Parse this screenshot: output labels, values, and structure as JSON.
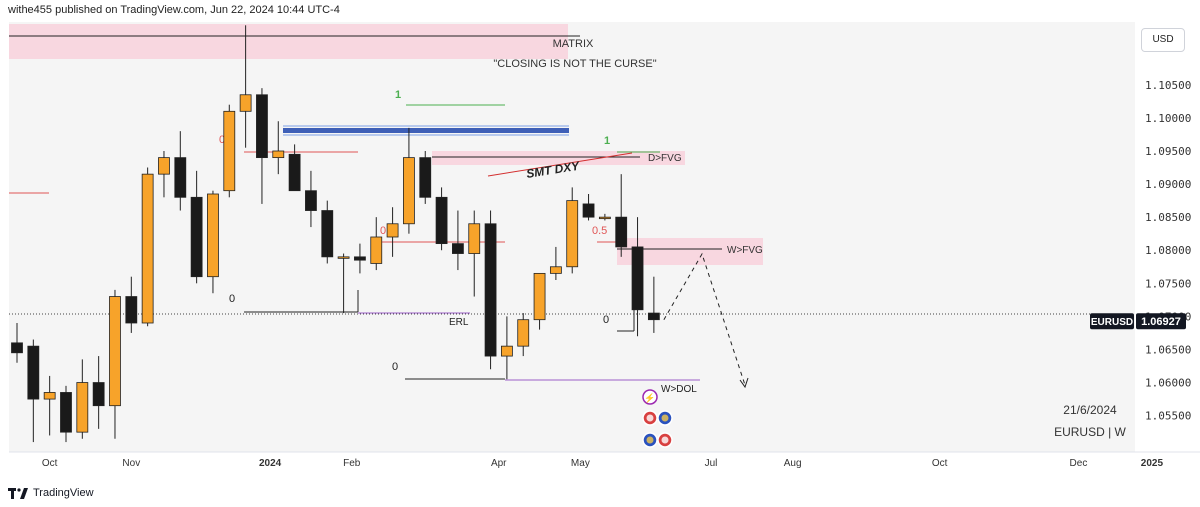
{
  "header": {
    "text": "withe455 published on TradingView.com, Jun 22, 2024 10:44 UTC-4"
  },
  "currency_badge": "USD",
  "footer": {
    "brand": "TradingView"
  },
  "chart_data": {
    "type": "candlestick",
    "symbol_label": "EURUSD",
    "interval_label": "EURUSD | W",
    "date_label": "21/6/2024",
    "title_lines": [
      "MATRIX",
      "\"CLOSING IS NOT THE CURSE\""
    ],
    "last_price": "1.06927",
    "ylim": [
      1.0495,
      1.1145
    ],
    "y_ticks": [
      {
        "v": 1.105,
        "label": "1.10500"
      },
      {
        "v": 1.1,
        "label": "1.10000"
      },
      {
        "v": 1.095,
        "label": "1.09500"
      },
      {
        "v": 1.09,
        "label": "1.09000"
      },
      {
        "v": 1.085,
        "label": "1.08500"
      },
      {
        "v": 1.08,
        "label": "1.08000"
      },
      {
        "v": 1.075,
        "label": "1.07500"
      },
      {
        "v": 1.07,
        "label": "1.07000"
      },
      {
        "v": 1.065,
        "label": "1.06500"
      },
      {
        "v": 1.06,
        "label": "1.06000"
      },
      {
        "v": 1.055,
        "label": "1.05500"
      }
    ],
    "x_ticks": [
      {
        "i": 2,
        "label": "Oct",
        "bold": false
      },
      {
        "i": 7,
        "label": "Nov",
        "bold": false
      },
      {
        "i": 15.5,
        "label": "2024",
        "bold": true
      },
      {
        "i": 20.5,
        "label": "Feb",
        "bold": false
      },
      {
        "i": 29.5,
        "label": "Apr",
        "bold": false
      },
      {
        "i": 34.5,
        "label": "May",
        "bold": false
      },
      {
        "i": 42.5,
        "label": "Jul",
        "bold": false
      },
      {
        "i": 47.5,
        "label": "Aug",
        "bold": false
      },
      {
        "i": 56.5,
        "label": "Oct",
        "bold": false
      },
      {
        "i": 65,
        "label": "Dec",
        "bold": false
      },
      {
        "i": 69.5,
        "label": "2025",
        "bold": true
      }
    ],
    "candles": [
      {
        "o": 1.066,
        "h": 1.069,
        "l": 1.063,
        "c": 1.0645
      },
      {
        "o": 1.0655,
        "h": 1.0665,
        "l": 1.051,
        "c": 1.0575
      },
      {
        "o": 1.0575,
        "h": 1.061,
        "l": 1.052,
        "c": 1.0585
      },
      {
        "o": 1.0585,
        "h": 1.0595,
        "l": 1.051,
        "c": 1.0525
      },
      {
        "o": 1.0525,
        "h": 1.0635,
        "l": 1.0515,
        "c": 1.06
      },
      {
        "o": 1.06,
        "h": 1.064,
        "l": 1.053,
        "c": 1.0565
      },
      {
        "o": 1.0565,
        "h": 1.074,
        "l": 1.0515,
        "c": 1.073
      },
      {
        "o": 1.073,
        "h": 1.076,
        "l": 1.0675,
        "c": 1.069
      },
      {
        "o": 1.069,
        "h": 1.0925,
        "l": 1.0685,
        "c": 1.0915
      },
      {
        "o": 1.0915,
        "h": 1.095,
        "l": 1.088,
        "c": 1.094
      },
      {
        "o": 1.094,
        "h": 1.098,
        "l": 1.086,
        "c": 1.088
      },
      {
        "o": 1.088,
        "h": 1.092,
        "l": 1.075,
        "c": 1.076
      },
      {
        "o": 1.076,
        "h": 1.089,
        "l": 1.0735,
        "c": 1.0885
      },
      {
        "o": 1.089,
        "h": 1.102,
        "l": 1.088,
        "c": 1.101
      },
      {
        "o": 1.101,
        "h": 1.114,
        "l": 1.0955,
        "c": 1.1035
      },
      {
        "o": 1.1035,
        "h": 1.1045,
        "l": 1.087,
        "c": 1.094
      },
      {
        "o": 1.094,
        "h": 1.0995,
        "l": 1.0915,
        "c": 1.095
      },
      {
        "o": 1.0945,
        "h": 1.096,
        "l": 1.089,
        "c": 1.089
      },
      {
        "o": 1.089,
        "h": 1.092,
        "l": 1.0835,
        "c": 1.086
      },
      {
        "o": 1.086,
        "h": 1.0875,
        "l": 1.078,
        "c": 1.079
      },
      {
        "o": 1.079,
        "h": 1.0795,
        "l": 1.0705,
        "c": 1.079
      },
      {
        "o": 1.079,
        "h": 1.081,
        "l": 1.0765,
        "c": 1.0785
      },
      {
        "o": 1.078,
        "h": 1.085,
        "l": 1.077,
        "c": 1.082
      },
      {
        "o": 1.082,
        "h": 1.0865,
        "l": 1.079,
        "c": 1.084
      },
      {
        "o": 1.084,
        "h": 1.0985,
        "l": 1.0825,
        "c": 1.094
      },
      {
        "o": 1.094,
        "h": 1.095,
        "l": 1.087,
        "c": 1.088
      },
      {
        "o": 1.088,
        "h": 1.0895,
        "l": 1.08,
        "c": 1.081
      },
      {
        "o": 1.081,
        "h": 1.086,
        "l": 1.077,
        "c": 1.0795
      },
      {
        "o": 1.0795,
        "h": 1.086,
        "l": 1.073,
        "c": 1.084
      },
      {
        "o": 1.084,
        "h": 1.086,
        "l": 1.062,
        "c": 1.064
      },
      {
        "o": 1.064,
        "h": 1.07,
        "l": 1.0605,
        "c": 1.0655
      },
      {
        "o": 1.0655,
        "h": 1.0705,
        "l": 1.064,
        "c": 1.0695
      },
      {
        "o": 1.0695,
        "h": 1.076,
        "l": 1.068,
        "c": 1.0765
      },
      {
        "o": 1.0765,
        "h": 1.0805,
        "l": 1.0755,
        "c": 1.0775
      },
      {
        "o": 1.0775,
        "h": 1.0895,
        "l": 1.0765,
        "c": 1.0875
      },
      {
        "o": 1.087,
        "h": 1.0885,
        "l": 1.0845,
        "c": 1.085
      },
      {
        "o": 1.085,
        "h": 1.0855,
        "l": 1.0845,
        "c": 1.085
      },
      {
        "o": 1.085,
        "h": 1.0915,
        "l": 1.079,
        "c": 1.0805
      },
      {
        "o": 1.0805,
        "h": 1.085,
        "l": 1.067,
        "c": 1.071
      },
      {
        "o": 1.0705,
        "h": 1.076,
        "l": 1.0675,
        "c": 1.0695
      }
    ],
    "annotations": {
      "zero": "0",
      "one": "1",
      "fib_half": "0.5",
      "d_fvg": "D>FVG",
      "w_fvg": "W>FVG",
      "smt_dxy": "SMT DXY",
      "erl": "ERL",
      "w_dol": "W>DOL"
    }
  }
}
